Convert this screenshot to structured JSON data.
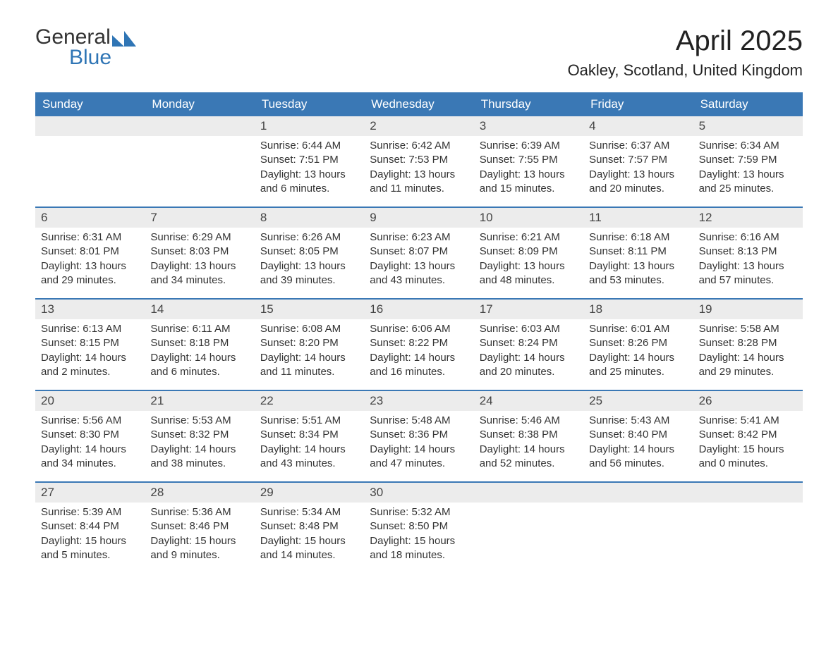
{
  "logo": {
    "general": "General",
    "blue": "Blue",
    "shape_color": "#2f75b5"
  },
  "title": "April 2025",
  "location": "Oakley, Scotland, United Kingdom",
  "colors": {
    "header_bg": "#3a78b5",
    "header_text": "#ffffff",
    "daynum_bg": "#ececec",
    "week_border": "#3a78b5",
    "body_text": "#333333",
    "page_bg": "#ffffff"
  },
  "typography": {
    "title_fontsize_pt": 30,
    "location_fontsize_pt": 16,
    "dayname_fontsize_pt": 13,
    "body_fontsize_pt": 11
  },
  "layout": {
    "columns": 7,
    "rows": 5,
    "first_weekday": "Sunday"
  },
  "day_names": [
    "Sunday",
    "Monday",
    "Tuesday",
    "Wednesday",
    "Thursday",
    "Friday",
    "Saturday"
  ],
  "weeks": [
    [
      null,
      null,
      {
        "n": "1",
        "sunrise": "Sunrise: 6:44 AM",
        "sunset": "Sunset: 7:51 PM",
        "dl1": "Daylight: 13 hours",
        "dl2": "and 6 minutes."
      },
      {
        "n": "2",
        "sunrise": "Sunrise: 6:42 AM",
        "sunset": "Sunset: 7:53 PM",
        "dl1": "Daylight: 13 hours",
        "dl2": "and 11 minutes."
      },
      {
        "n": "3",
        "sunrise": "Sunrise: 6:39 AM",
        "sunset": "Sunset: 7:55 PM",
        "dl1": "Daylight: 13 hours",
        "dl2": "and 15 minutes."
      },
      {
        "n": "4",
        "sunrise": "Sunrise: 6:37 AM",
        "sunset": "Sunset: 7:57 PM",
        "dl1": "Daylight: 13 hours",
        "dl2": "and 20 minutes."
      },
      {
        "n": "5",
        "sunrise": "Sunrise: 6:34 AM",
        "sunset": "Sunset: 7:59 PM",
        "dl1": "Daylight: 13 hours",
        "dl2": "and 25 minutes."
      }
    ],
    [
      {
        "n": "6",
        "sunrise": "Sunrise: 6:31 AM",
        "sunset": "Sunset: 8:01 PM",
        "dl1": "Daylight: 13 hours",
        "dl2": "and 29 minutes."
      },
      {
        "n": "7",
        "sunrise": "Sunrise: 6:29 AM",
        "sunset": "Sunset: 8:03 PM",
        "dl1": "Daylight: 13 hours",
        "dl2": "and 34 minutes."
      },
      {
        "n": "8",
        "sunrise": "Sunrise: 6:26 AM",
        "sunset": "Sunset: 8:05 PM",
        "dl1": "Daylight: 13 hours",
        "dl2": "and 39 minutes."
      },
      {
        "n": "9",
        "sunrise": "Sunrise: 6:23 AM",
        "sunset": "Sunset: 8:07 PM",
        "dl1": "Daylight: 13 hours",
        "dl2": "and 43 minutes."
      },
      {
        "n": "10",
        "sunrise": "Sunrise: 6:21 AM",
        "sunset": "Sunset: 8:09 PM",
        "dl1": "Daylight: 13 hours",
        "dl2": "and 48 minutes."
      },
      {
        "n": "11",
        "sunrise": "Sunrise: 6:18 AM",
        "sunset": "Sunset: 8:11 PM",
        "dl1": "Daylight: 13 hours",
        "dl2": "and 53 minutes."
      },
      {
        "n": "12",
        "sunrise": "Sunrise: 6:16 AM",
        "sunset": "Sunset: 8:13 PM",
        "dl1": "Daylight: 13 hours",
        "dl2": "and 57 minutes."
      }
    ],
    [
      {
        "n": "13",
        "sunrise": "Sunrise: 6:13 AM",
        "sunset": "Sunset: 8:15 PM",
        "dl1": "Daylight: 14 hours",
        "dl2": "and 2 minutes."
      },
      {
        "n": "14",
        "sunrise": "Sunrise: 6:11 AM",
        "sunset": "Sunset: 8:18 PM",
        "dl1": "Daylight: 14 hours",
        "dl2": "and 6 minutes."
      },
      {
        "n": "15",
        "sunrise": "Sunrise: 6:08 AM",
        "sunset": "Sunset: 8:20 PM",
        "dl1": "Daylight: 14 hours",
        "dl2": "and 11 minutes."
      },
      {
        "n": "16",
        "sunrise": "Sunrise: 6:06 AM",
        "sunset": "Sunset: 8:22 PM",
        "dl1": "Daylight: 14 hours",
        "dl2": "and 16 minutes."
      },
      {
        "n": "17",
        "sunrise": "Sunrise: 6:03 AM",
        "sunset": "Sunset: 8:24 PM",
        "dl1": "Daylight: 14 hours",
        "dl2": "and 20 minutes."
      },
      {
        "n": "18",
        "sunrise": "Sunrise: 6:01 AM",
        "sunset": "Sunset: 8:26 PM",
        "dl1": "Daylight: 14 hours",
        "dl2": "and 25 minutes."
      },
      {
        "n": "19",
        "sunrise": "Sunrise: 5:58 AM",
        "sunset": "Sunset: 8:28 PM",
        "dl1": "Daylight: 14 hours",
        "dl2": "and 29 minutes."
      }
    ],
    [
      {
        "n": "20",
        "sunrise": "Sunrise: 5:56 AM",
        "sunset": "Sunset: 8:30 PM",
        "dl1": "Daylight: 14 hours",
        "dl2": "and 34 minutes."
      },
      {
        "n": "21",
        "sunrise": "Sunrise: 5:53 AM",
        "sunset": "Sunset: 8:32 PM",
        "dl1": "Daylight: 14 hours",
        "dl2": "and 38 minutes."
      },
      {
        "n": "22",
        "sunrise": "Sunrise: 5:51 AM",
        "sunset": "Sunset: 8:34 PM",
        "dl1": "Daylight: 14 hours",
        "dl2": "and 43 minutes."
      },
      {
        "n": "23",
        "sunrise": "Sunrise: 5:48 AM",
        "sunset": "Sunset: 8:36 PM",
        "dl1": "Daylight: 14 hours",
        "dl2": "and 47 minutes."
      },
      {
        "n": "24",
        "sunrise": "Sunrise: 5:46 AM",
        "sunset": "Sunset: 8:38 PM",
        "dl1": "Daylight: 14 hours",
        "dl2": "and 52 minutes."
      },
      {
        "n": "25",
        "sunrise": "Sunrise: 5:43 AM",
        "sunset": "Sunset: 8:40 PM",
        "dl1": "Daylight: 14 hours",
        "dl2": "and 56 minutes."
      },
      {
        "n": "26",
        "sunrise": "Sunrise: 5:41 AM",
        "sunset": "Sunset: 8:42 PM",
        "dl1": "Daylight: 15 hours",
        "dl2": "and 0 minutes."
      }
    ],
    [
      {
        "n": "27",
        "sunrise": "Sunrise: 5:39 AM",
        "sunset": "Sunset: 8:44 PM",
        "dl1": "Daylight: 15 hours",
        "dl2": "and 5 minutes."
      },
      {
        "n": "28",
        "sunrise": "Sunrise: 5:36 AM",
        "sunset": "Sunset: 8:46 PM",
        "dl1": "Daylight: 15 hours",
        "dl2": "and 9 minutes."
      },
      {
        "n": "29",
        "sunrise": "Sunrise: 5:34 AM",
        "sunset": "Sunset: 8:48 PM",
        "dl1": "Daylight: 15 hours",
        "dl2": "and 14 minutes."
      },
      {
        "n": "30",
        "sunrise": "Sunrise: 5:32 AM",
        "sunset": "Sunset: 8:50 PM",
        "dl1": "Daylight: 15 hours",
        "dl2": "and 18 minutes."
      },
      null,
      null,
      null
    ]
  ]
}
